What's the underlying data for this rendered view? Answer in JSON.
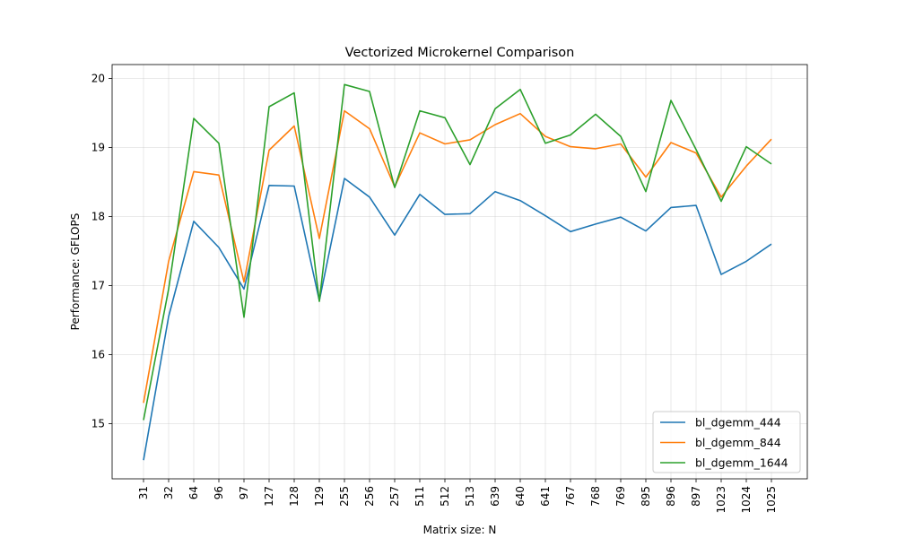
{
  "chart_data": {
    "type": "line",
    "title": "Vectorized Microkernel Comparison",
    "xlabel": "Matrix size: N",
    "ylabel": "Performance: GFLOPS",
    "categories": [
      "31",
      "32",
      "64",
      "96",
      "97",
      "127",
      "128",
      "129",
      "255",
      "256",
      "257",
      "511",
      "512",
      "513",
      "639",
      "640",
      "641",
      "767",
      "768",
      "769",
      "895",
      "896",
      "897",
      "1023",
      "1024",
      "1025"
    ],
    "ylim": [
      14.2,
      20.2
    ],
    "yticks": [
      15,
      16,
      17,
      18,
      19,
      20
    ],
    "grid": true,
    "legend_position": "lower-right",
    "series": [
      {
        "name": "bl_dgemm_444",
        "color": "#1f77b4",
        "values": [
          14.47,
          16.55,
          17.93,
          17.55,
          16.95,
          18.45,
          18.44,
          16.78,
          18.55,
          18.28,
          17.73,
          18.32,
          18.03,
          18.04,
          18.36,
          18.23,
          18.01,
          17.78,
          17.89,
          17.99,
          17.79,
          18.13,
          18.16,
          17.16,
          17.35,
          17.6
        ]
      },
      {
        "name": "bl_dgemm_844",
        "color": "#ff7f0e",
        "values": [
          15.3,
          17.35,
          18.65,
          18.6,
          17.05,
          18.96,
          19.31,
          17.68,
          19.53,
          19.27,
          18.43,
          19.21,
          19.05,
          19.11,
          19.33,
          19.49,
          19.16,
          19.01,
          18.98,
          19.05,
          18.57,
          19.07,
          18.92,
          18.28,
          18.73,
          19.12
        ]
      },
      {
        "name": "bl_dgemm_1644",
        "color": "#2ca02c",
        "values": [
          15.05,
          16.95,
          19.42,
          19.06,
          16.54,
          19.59,
          19.79,
          16.77,
          19.91,
          19.81,
          18.42,
          19.53,
          19.43,
          18.75,
          19.56,
          19.84,
          19.06,
          19.18,
          19.48,
          19.16,
          18.36,
          19.68,
          18.97,
          18.22,
          19.01,
          18.76
        ]
      }
    ]
  }
}
